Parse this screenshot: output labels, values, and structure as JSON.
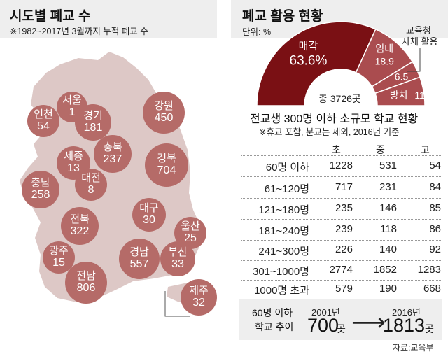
{
  "left": {
    "title": "시도별 폐교 수",
    "subtitle": "※1982~2017년 3월까지 누적 폐교 수"
  },
  "right": {
    "title": "폐교 활용 현황",
    "unit": "단위: %",
    "total_label": "총 3726곳",
    "callout_label_line1": "교육청",
    "callout_label_line2": "자체 활용"
  },
  "table": {
    "title": "전교생 300명 이하 소규모 학교 현황",
    "note": "※휴교 포함, 분교는 제외, 2016년 기준",
    "columns": [
      "초",
      "중",
      "고"
    ]
  },
  "trend": {
    "label_line1": "60명 이하",
    "label_line2": "학교 추이",
    "year_from": "2001년",
    "value_from": "700",
    "unit_from": "곳",
    "year_to": "2016년",
    "value_to": "1813",
    "unit_to": "곳",
    "arrow": "⟶"
  },
  "source": "자료:교육부",
  "colors": {
    "map": "#ddc8c6",
    "bubble": "#b56b68",
    "pie_main": "#7a1014",
    "pie_secondary": "#aa4c4f"
  },
  "chart_data": [
    {
      "type": "bubble-map",
      "title": "시도별 폐교 수",
      "subtitle": "※1982~2017년 3월까지 누적 폐교 수",
      "regions": [
        {
          "name": "서울",
          "value": 1
        },
        {
          "name": "인천",
          "value": 54
        },
        {
          "name": "경기",
          "value": 181
        },
        {
          "name": "강원",
          "value": 450
        },
        {
          "name": "세종",
          "value": 13
        },
        {
          "name": "충북",
          "value": 237
        },
        {
          "name": "충남",
          "value": 258
        },
        {
          "name": "대전",
          "value": 8
        },
        {
          "name": "경북",
          "value": 704
        },
        {
          "name": "전북",
          "value": 322
        },
        {
          "name": "대구",
          "value": 30
        },
        {
          "name": "울산",
          "value": 25
        },
        {
          "name": "광주",
          "value": 15
        },
        {
          "name": "경남",
          "value": 557
        },
        {
          "name": "부산",
          "value": 33
        },
        {
          "name": "전남",
          "value": 806
        },
        {
          "name": "제주",
          "value": 32
        }
      ]
    },
    {
      "type": "pie",
      "title": "폐교 활용 현황",
      "unit": "단위: %",
      "center_label": "총 3726곳",
      "slices": [
        {
          "name": "매각",
          "value": 63.6
        },
        {
          "name": "임대",
          "value": 18.9
        },
        {
          "name": "교육청 자체 활용",
          "value": 6.5
        },
        {
          "name": "방치",
          "value": 11
        }
      ]
    },
    {
      "type": "table",
      "title": "전교생 300명 이하 소규모 학교 현황",
      "columns": [
        "초",
        "중",
        "고"
      ],
      "rows": [
        {
          "label": "60명 이하",
          "values": [
            1228,
            531,
            54
          ]
        },
        {
          "label": "61~120명",
          "values": [
            717,
            231,
            84
          ]
        },
        {
          "label": "121~180명",
          "values": [
            235,
            146,
            85
          ]
        },
        {
          "label": "181~240명",
          "values": [
            239,
            118,
            86
          ]
        },
        {
          "label": "241~300명",
          "values": [
            226,
            140,
            92
          ]
        },
        {
          "label": "301~1000명",
          "values": [
            2774,
            1852,
            1283
          ]
        },
        {
          "label": "1000명 초과",
          "values": [
            579,
            190,
            668
          ]
        }
      ]
    }
  ]
}
